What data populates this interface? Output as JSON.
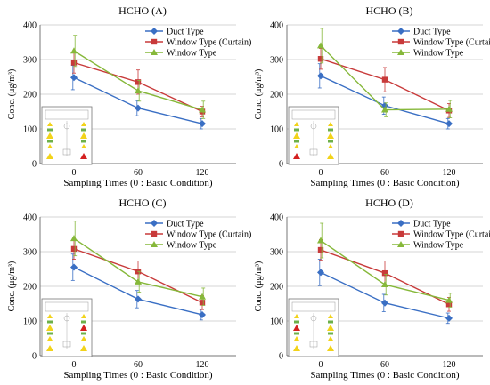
{
  "series_style": [
    {
      "color": "#3a6fc4",
      "marker": "diamond"
    },
    {
      "color": "#c83a3a",
      "marker": "square"
    },
    {
      "color": "#86b83a",
      "marker": "triangle"
    }
  ],
  "inset_colors": {
    "yellow": "#f2d31a",
    "red": "#d42020",
    "green": "#6db04a"
  },
  "chart_data": [
    {
      "type": "line",
      "title": "HCHO (A)",
      "xlabel": "Sampling Times (0 : Basic Condition)",
      "ylabel": "Conc. (μg/m³)",
      "x": [
        "0",
        "60",
        "120"
      ],
      "ylim": [
        0,
        400
      ],
      "yticks": [
        "0",
        "100",
        "200",
        "300",
        "400"
      ],
      "grid": true,
      "legend": "top-right",
      "series": [
        {
          "name": "Duct Type",
          "values": [
            248,
            160,
            115
          ],
          "err": [
            35,
            22,
            15
          ]
        },
        {
          "name": "Window Type (Curtain)",
          "values": [
            291,
            235,
            150
          ],
          "err": [
            30,
            35,
            15
          ]
        },
        {
          "name": "Window Type",
          "values": [
            325,
            210,
            155
          ],
          "err": [
            45,
            30,
            25
          ]
        }
      ],
      "inset": {
        "red_marker": "bottom-right"
      }
    },
    {
      "type": "line",
      "title": "HCHO (B)",
      "xlabel": "Sampling Times (0 : Basic Condition)",
      "ylabel": "Conc. (μg/m³)",
      "x": [
        "0",
        "60",
        "120"
      ],
      "ylim": [
        0,
        400
      ],
      "yticks": [
        "0",
        "100",
        "200",
        "300",
        "400"
      ],
      "grid": true,
      "legend": "top-right",
      "series": [
        {
          "name": "Duct Type",
          "values": [
            253,
            167,
            115
          ],
          "err": [
            35,
            25,
            15
          ]
        },
        {
          "name": "Window Type (Curtain)",
          "values": [
            302,
            242,
            153
          ],
          "err": [
            30,
            35,
            20
          ]
        },
        {
          "name": "Window Type",
          "values": [
            340,
            155,
            157
          ],
          "err": [
            50,
            20,
            25
          ]
        }
      ],
      "inset": {
        "red_marker": "bottom-left"
      }
    },
    {
      "type": "line",
      "title": "HCHO (C)",
      "xlabel": "Sampling Times (0 : Basic Condition)",
      "ylabel": "Conc. (μg/m³)",
      "x": [
        "0",
        "60",
        "120"
      ],
      "ylim": [
        0,
        400
      ],
      "yticks": [
        "0",
        "100",
        "200",
        "300",
        "400"
      ],
      "grid": true,
      "legend": "top-right",
      "series": [
        {
          "name": "Duct Type",
          "values": [
            255,
            163,
            118
          ],
          "err": [
            38,
            25,
            15
          ]
        },
        {
          "name": "Window Type (Curtain)",
          "values": [
            308,
            243,
            153
          ],
          "err": [
            30,
            30,
            20
          ]
        },
        {
          "name": "Window Type",
          "values": [
            338,
            213,
            170
          ],
          "err": [
            50,
            30,
            25
          ]
        }
      ],
      "inset": {
        "red_marker": "top-right"
      }
    },
    {
      "type": "line",
      "title": "HCHO (D)",
      "xlabel": "Sampling Times (0 : Basic Condition)",
      "ylabel": "Conc. (μg/m³)",
      "x": [
        "0",
        "60",
        "120"
      ],
      "ylim": [
        0,
        400
      ],
      "yticks": [
        "0",
        "100",
        "200",
        "300",
        "400"
      ],
      "grid": true,
      "legend": "top-right",
      "series": [
        {
          "name": "Duct Type",
          "values": [
            240,
            152,
            108
          ],
          "err": [
            38,
            25,
            15
          ]
        },
        {
          "name": "Window Type (Curtain)",
          "values": [
            305,
            238,
            148
          ],
          "err": [
            30,
            35,
            20
          ]
        },
        {
          "name": "Window Type",
          "values": [
            332,
            205,
            160
          ],
          "err": [
            50,
            30,
            20
          ]
        }
      ],
      "inset": {
        "red_marker": "top-left"
      }
    }
  ]
}
